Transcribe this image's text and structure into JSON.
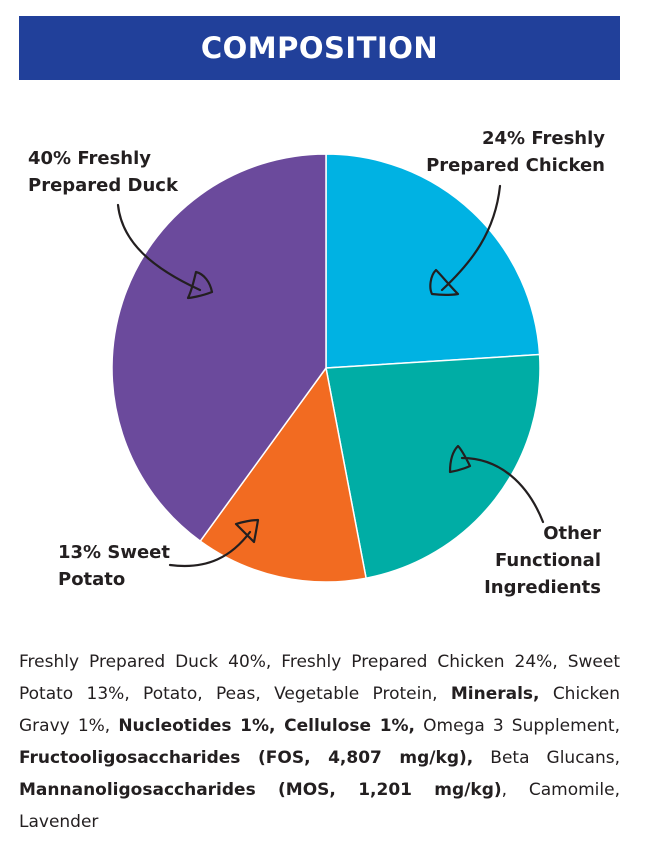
{
  "header": {
    "title": "COMPOSITION"
  },
  "colors": {
    "banner": "#21409a",
    "duck": "#6b4a9c",
    "chicken": "#00b2e3",
    "other": "#00ada5",
    "sweet_potato": "#f26b21"
  },
  "chart_data": {
    "type": "pie",
    "slices": [
      {
        "key": "chicken",
        "label_lines": [
          "24% Freshly",
          "Prepared Chicken"
        ],
        "value": 24,
        "color": "#00b2e3"
      },
      {
        "key": "other",
        "label_lines": [
          "Other",
          "Functional",
          "Ingredients"
        ],
        "value": 23,
        "color": "#00ada5"
      },
      {
        "key": "sweet_potato",
        "label_lines": [
          "13% Sweet",
          "Potato"
        ],
        "value": 13,
        "color": "#f26b21"
      },
      {
        "key": "duck",
        "label_lines": [
          "40% Freshly",
          "Prepared Duck"
        ],
        "value": 40,
        "color": "#6b4a9c"
      }
    ]
  },
  "ingredients": [
    {
      "text": "Freshly Prepared Duck 40%, Freshly Prepared Chicken 24%, Sweet Potato 13%, Potato, Peas, Vegetable Protein, ",
      "bold": false
    },
    {
      "text": "Minerals,",
      "bold": true
    },
    {
      "text": " Chicken Gravy 1%, ",
      "bold": false
    },
    {
      "text": "Nucleotides 1%, Cellulose 1%,",
      "bold": true
    },
    {
      "text": " Omega 3 Supplement, ",
      "bold": false
    },
    {
      "text": "Fructooligosaccharides (FOS, 4,807 mg/kg),",
      "bold": true
    },
    {
      "text": " Beta Glucans, ",
      "bold": false
    },
    {
      "text": "Mannanoligosaccharides (MOS, 1,201 mg/kg)",
      "bold": true
    },
    {
      "text": ", Camomile, Lavender",
      "bold": false
    }
  ]
}
